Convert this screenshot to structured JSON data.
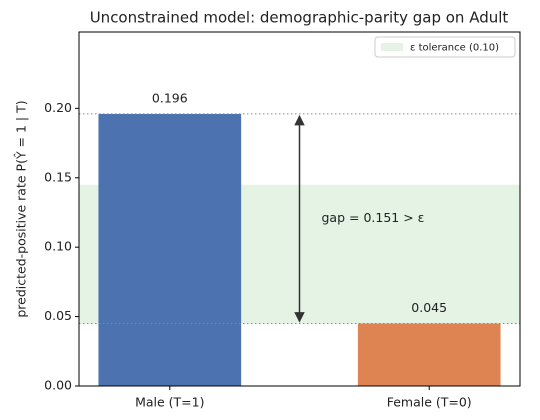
{
  "chart_data": {
    "type": "bar",
    "title": "Unconstrained model: demographic-parity gap on Adult",
    "y_label": "predicted-positive rate  P(Ŷ = 1 | T)",
    "categories": [
      "Male (T=1)",
      "Female (T=0)"
    ],
    "values": [
      0.196,
      0.045
    ],
    "colors": [
      "#4c72b0",
      "#dd8452"
    ],
    "ylim": [
      0,
      0.255
    ],
    "yticks": [
      {
        "value": 0,
        "label": "0.00"
      },
      {
        "value": 0.05,
        "label": "0.05"
      },
      {
        "value": 0.1,
        "label": "0.10"
      },
      {
        "value": 0.15,
        "label": "0.15"
      },
      {
        "value": 0.2,
        "label": "0.20"
      }
    ],
    "tolerance_band": {
      "name": "ε tolerance (0.10)",
      "range": [
        0.045,
        0.145
      ],
      "color": "#2ca02c"
    },
    "annotation": "gap = 0.151 > ε",
    "legend": "upper right"
  }
}
